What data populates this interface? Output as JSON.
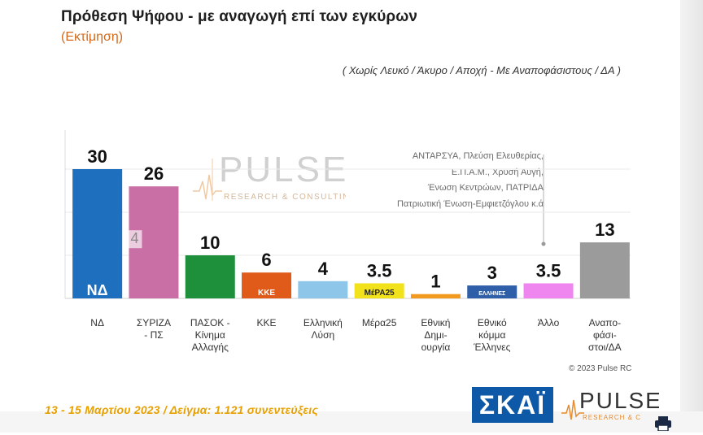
{
  "header": {
    "title": "Πρόθεση Ψήφου - με αναγωγή επί των εγκύρων",
    "subtitle": "(Εκτίμηση)",
    "condition": "( Χωρίς Λευκό / Άκυρο / Αποχή  -  Με Αναποφάσιστους / ΔΑ )"
  },
  "watermark": {
    "brand": "PULSE",
    "tagline": "RESEARCH & CONSULTING"
  },
  "others_note": {
    "lines": [
      "ΑΝΤΑΡΣΥΑ, Πλεύση Ελευθερίας,",
      "Ε.Π.Α.Μ., Χρυσή Αυγή,",
      "Ένωση Κεντρώων,  ΠΑΤΡΙΔΑ",
      "Πατριωτική Ένωση-Εμφιετζόγλου  κ.ά"
    ]
  },
  "footer": {
    "fieldwork": "13 - 15  Μαρτίου  2023  /  Δείγμα:  1.121 συνεντεύξεις",
    "copyright": "© 2023 Pulse RC",
    "skai_logo": "ΣΚΑΪ",
    "pulse_logo": "PULSE",
    "pulse_tagline": "RESEARCH & C"
  },
  "colors": {
    "subtitle": "#d2691e",
    "footer": "#e8a000",
    "skai_blue": "#0e58a8"
  },
  "chart_data": {
    "type": "bar",
    "title": "Πρόθεση Ψήφου - με αναγωγή επί των εγκύρων",
    "ylim": [
      0,
      34
    ],
    "grid": true,
    "categories": [
      [
        "ΝΔ"
      ],
      [
        "ΣΥΡΙΖΑ",
        "- ΠΣ"
      ],
      [
        "ΠΑΣΟΚ -",
        "Κίνημα",
        "Αλλαγής"
      ],
      [
        "ΚΚΕ"
      ],
      [
        "Ελληνική",
        "Λύση"
      ],
      [
        "Μέρα25"
      ],
      [
        "Εθνική",
        "Δημι-",
        "ουργία"
      ],
      [
        "Εθνικό",
        "κόμμα",
        "Έλληνες"
      ],
      [
        "Άλλο"
      ],
      [
        "Αναπο-",
        "φάσι-",
        "στοι/ΔΑ"
      ]
    ],
    "values": [
      30,
      26,
      10,
      6,
      4,
      3.5,
      1,
      3,
      3.5,
      13
    ],
    "value_labels": [
      "30",
      "26",
      "10",
      "6",
      "4",
      "3.5",
      "1",
      "3",
      "3.5",
      "13"
    ],
    "bar_colors": [
      "#1f6fbf",
      "#c96fa6",
      "#1e8f3b",
      "#e05a1a",
      "#8ec6ea",
      "#f2e21c",
      "#f29a1d",
      "#2f5fa8",
      "#ef86ef",
      "#9b9b9b"
    ],
    "logo_labels": [
      "ΝΔ",
      "",
      "",
      "ΚΚΕ",
      "",
      "ΜέΡΑ25",
      "",
      "ΕΛΛΗΝΕΣ",
      "",
      ""
    ],
    "inner_annotation": {
      "bar_index": 1,
      "text": "4"
    }
  }
}
